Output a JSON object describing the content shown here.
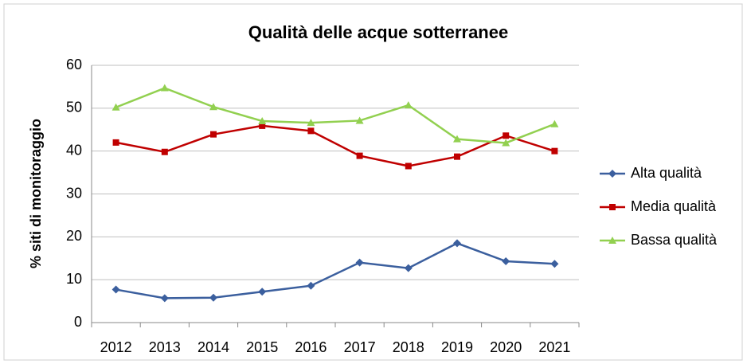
{
  "chart_data": {
    "type": "line",
    "title": "Qualità delle acque sotterranee",
    "y_label": "% siti di monitoraggio",
    "categories": [
      "2012",
      "2013",
      "2014",
      "2015",
      "2016",
      "2017",
      "2018",
      "2019",
      "2020",
      "2021"
    ],
    "series": [
      {
        "name": "Alta qualità",
        "color": "#3b5f9e",
        "marker": "diamond",
        "values": [
          7.7,
          5.7,
          5.8,
          7.2,
          8.6,
          14.0,
          12.7,
          18.5,
          14.3,
          13.7
        ]
      },
      {
        "name": "Media qualità",
        "color": "#c00000",
        "marker": "square",
        "values": [
          42.0,
          39.8,
          43.9,
          45.9,
          44.7,
          38.9,
          36.5,
          38.7,
          43.6,
          40.0
        ]
      },
      {
        "name": "Bassa qualità",
        "color": "#92d050",
        "marker": "triangle",
        "values": [
          50.2,
          54.7,
          50.3,
          47.0,
          46.6,
          47.1,
          50.7,
          42.8,
          41.9,
          46.3
        ]
      }
    ],
    "ylim": [
      0,
      60
    ],
    "yticks": [
      0,
      10,
      20,
      30,
      40,
      50,
      60
    ],
    "grid": true,
    "legend": "right"
  }
}
